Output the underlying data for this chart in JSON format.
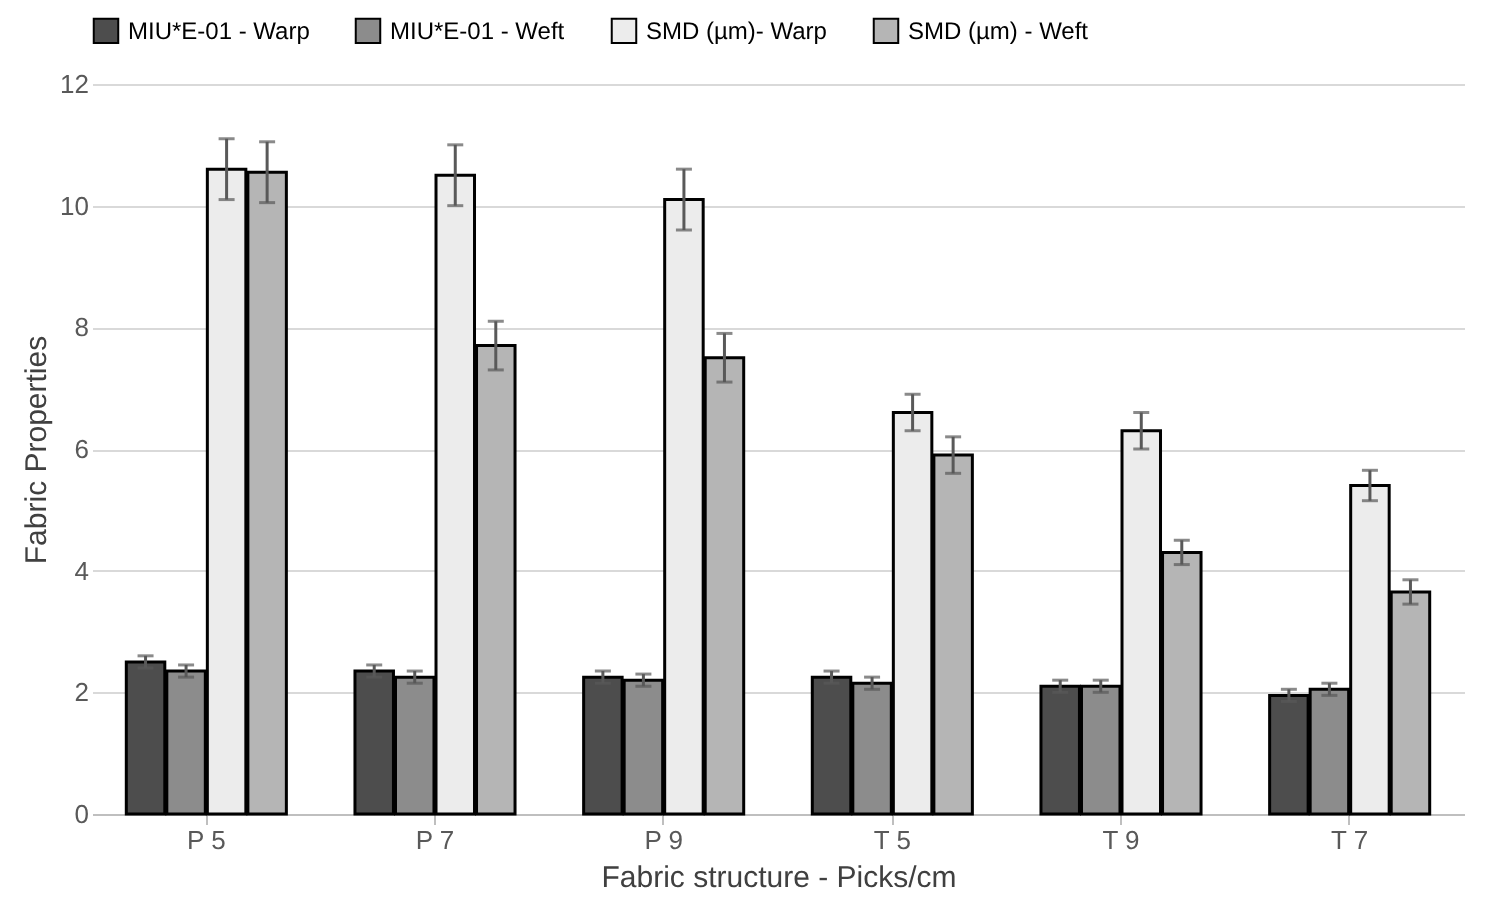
{
  "chart_data": {
    "type": "bar",
    "xlabel": "Fabric structure - Picks/cm",
    "ylabel": "Fabric Properties",
    "categories": [
      "P 5",
      "P 7",
      "P 9",
      "T 5",
      "T 9",
      "T 7"
    ],
    "series": [
      {
        "name": "MIU*E-01 - Warp",
        "color": "#4d4d4d",
        "values": [
          2.5,
          2.35,
          2.25,
          2.25,
          2.1,
          1.95
        ],
        "errors": [
          0.1,
          0.1,
          0.1,
          0.1,
          0.1,
          0.1
        ]
      },
      {
        "name": "MIU*E-01 - Weft",
        "color": "#8c8c8c",
        "values": [
          2.35,
          2.25,
          2.2,
          2.15,
          2.1,
          2.05
        ],
        "errors": [
          0.1,
          0.1,
          0.1,
          0.1,
          0.1,
          0.1
        ]
      },
      {
        "name": "SMD (µm)- Warp",
        "color": "#ececec",
        "values": [
          10.6,
          10.5,
          10.1,
          6.6,
          6.3,
          5.4
        ],
        "errors": [
          0.5,
          0.5,
          0.5,
          0.3,
          0.3,
          0.25
        ]
      },
      {
        "name": "SMD (µm) - Weft",
        "color": "#b5b5b5",
        "values": [
          10.55,
          7.7,
          7.5,
          5.9,
          4.3,
          3.65
        ],
        "errors": [
          0.5,
          0.4,
          0.4,
          0.3,
          0.2,
          0.2
        ]
      }
    ],
    "ylim": [
      0,
      12
    ],
    "yticks": [
      0,
      2,
      4,
      6,
      8,
      10,
      12
    ],
    "grid": "y",
    "legend": "top"
  }
}
